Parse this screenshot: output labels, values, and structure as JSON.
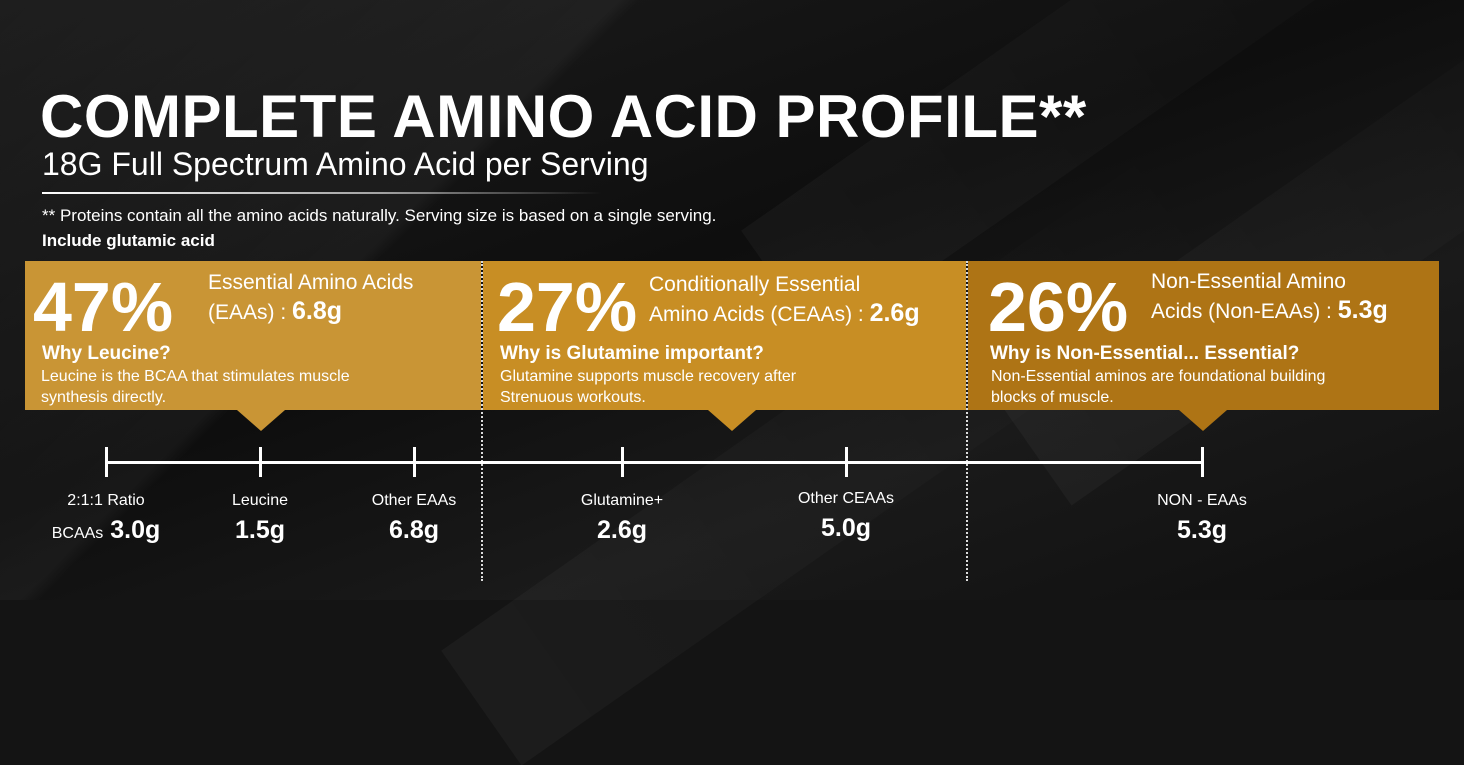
{
  "header": {
    "title": "COMPLETE AMINO ACID PROFILE**",
    "subtitle": "18G Full Spectrum Amino Acid per Serving",
    "note": "** Proteins contain all the amino acids naturally. Serving size is based on a single serving.",
    "note_bold": "Include glutamic acid"
  },
  "panels": [
    {
      "percent": "47%",
      "label_line1": "Essential Amino Acids",
      "label_line2": "(EAAs) :",
      "amount": "6.8g",
      "why": "Why Leucine?",
      "desc_line1": "Leucine is the BCAA that stimulates muscle",
      "desc_line2": "synthesis directly.",
      "color": "#c99535"
    },
    {
      "percent": "27%",
      "label_line1": "Conditionally Essential",
      "label_line2": "Amino Acids (CEAAs) :",
      "amount": "2.6g",
      "why": "Why is Glutamine important?",
      "desc_line1": "Glutamine supports muscle recovery after",
      "desc_line2": "Strenuous workouts.",
      "color": "#c88e24"
    },
    {
      "percent": "26%",
      "label_line1": "Non-Essential Amino",
      "label_line2": "Acids (Non-EAAs) :",
      "amount": "5.3g",
      "why": "Why is Non-Essential... Essential?",
      "desc_line1": "Non-Essential aminos are foundational building",
      "desc_line2": "blocks of muscle.",
      "color": "#ae7415"
    }
  ],
  "scale": [
    {
      "label": "2:1:1 Ratio",
      "prefix": "BCAAs",
      "value": "3.0g"
    },
    {
      "label": "Leucine",
      "value": "1.5g"
    },
    {
      "label": "Other EAAs",
      "value": "6.8g"
    },
    {
      "label": "Glutamine+",
      "value": "2.6g"
    },
    {
      "label": "Other CEAAs",
      "value": "5.0g"
    },
    {
      "label": "NON - EAAs",
      "value": "5.3g"
    }
  ]
}
